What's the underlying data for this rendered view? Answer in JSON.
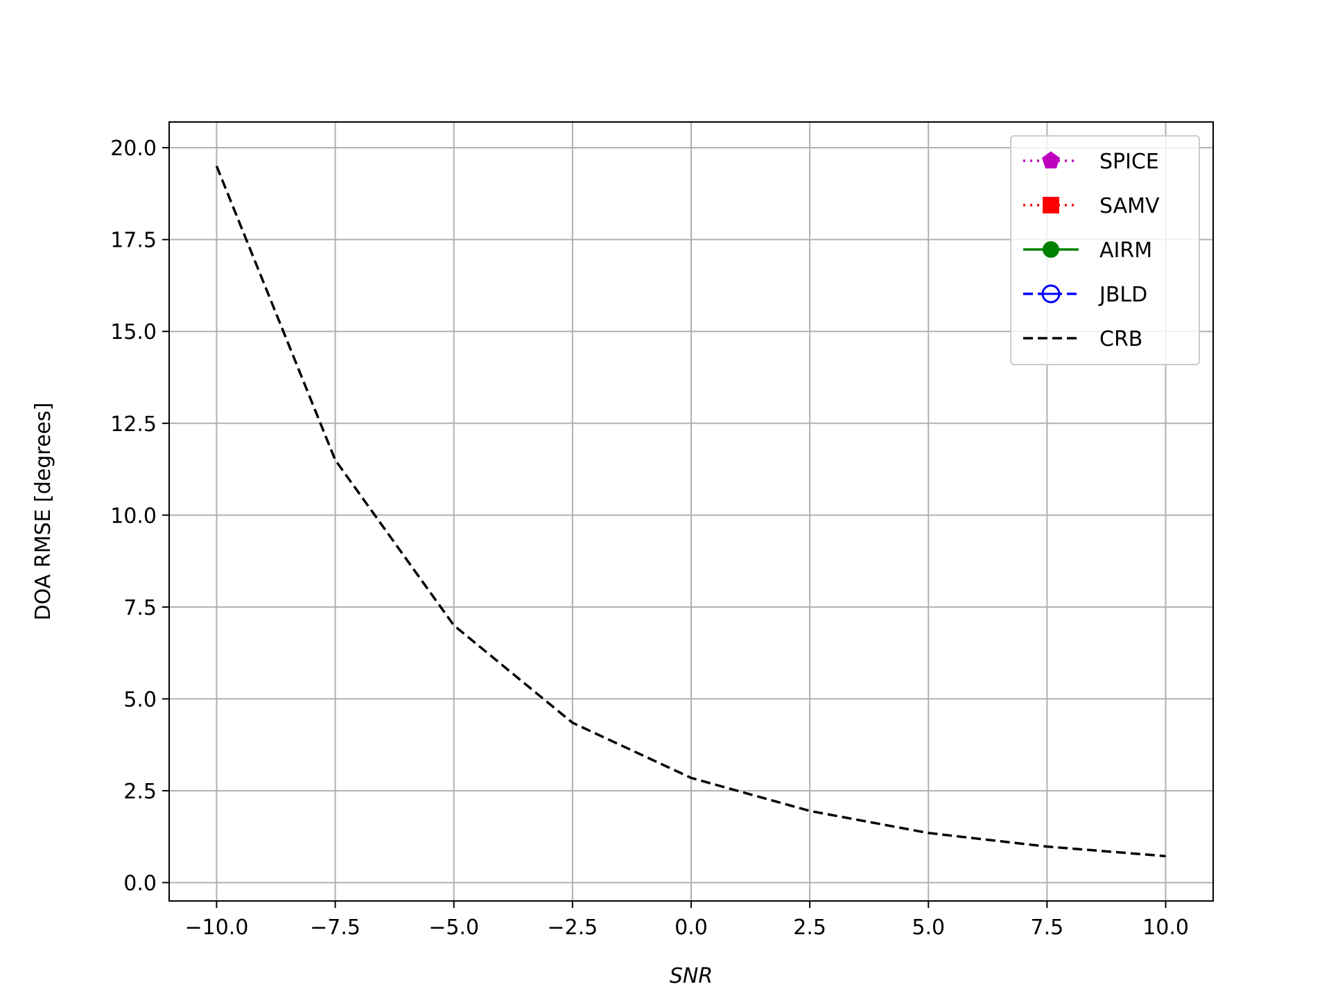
{
  "chart_data": {
    "type": "line",
    "title": "",
    "xlabel": "SNR",
    "ylabel": "DOA RMSE [degrees]",
    "xlim": [
      -11.0,
      11.0
    ],
    "ylim": [
      -0.5,
      20.7
    ],
    "x_ticks": [
      -10.0,
      -7.5,
      -5.0,
      -2.5,
      0.0,
      2.5,
      5.0,
      7.5,
      10.0
    ],
    "x_tick_labels": [
      "−10.0",
      "−7.5",
      "−5.0",
      "−2.5",
      "0.0",
      "2.5",
      "5.0",
      "7.5",
      "10.0"
    ],
    "y_ticks": [
      0.0,
      2.5,
      5.0,
      7.5,
      10.0,
      12.5,
      15.0,
      17.5,
      20.0
    ],
    "y_tick_labels": [
      "0.0",
      "2.5",
      "5.0",
      "7.5",
      "10.0",
      "12.5",
      "15.0",
      "17.5",
      "20.0"
    ],
    "grid": true,
    "legend_position": "top-right",
    "series": [
      {
        "name": "SPICE",
        "color": "#bf00bf",
        "style": "dotted",
        "marker": "pentagon",
        "x": [],
        "y": []
      },
      {
        "name": "SAMV",
        "color": "#ff0000",
        "style": "dotted",
        "marker": "square",
        "x": [],
        "y": []
      },
      {
        "name": "AIRM",
        "color": "#008000",
        "style": "solid",
        "marker": "circle",
        "x": [],
        "y": []
      },
      {
        "name": "JBLD",
        "color": "#0000ff",
        "style": "dashed",
        "marker": "circle-open-bar",
        "x": [],
        "y": []
      },
      {
        "name": "CRB",
        "color": "#000000",
        "style": "dashed",
        "marker": "none",
        "x": [
          -10.0,
          -7.5,
          -5.0,
          -2.5,
          0.0,
          2.5,
          5.0,
          7.5,
          10.0
        ],
        "y": [
          19.5,
          11.5,
          7.0,
          4.35,
          2.85,
          1.95,
          1.35,
          0.98,
          0.72
        ]
      }
    ]
  }
}
